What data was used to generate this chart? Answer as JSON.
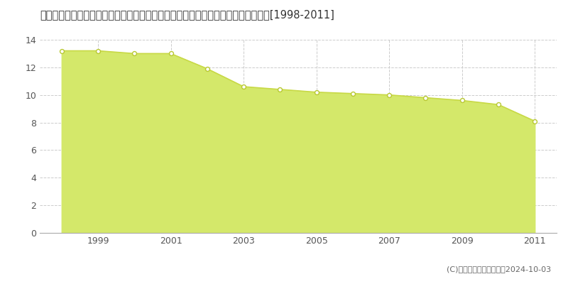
{
  "title": "広島県広島市安佐北区安佐町大字飯室字森城６８７９番２３　基準地価　地価推移[1998-2011]",
  "years": [
    1998,
    1999,
    2000,
    2001,
    2002,
    2003,
    2004,
    2005,
    2006,
    2007,
    2008,
    2009,
    2010,
    2011
  ],
  "values": [
    13.2,
    13.2,
    13.0,
    13.0,
    11.9,
    10.6,
    10.4,
    10.2,
    10.1,
    10.0,
    9.8,
    9.6,
    9.3,
    8.1
  ],
  "line_color": "#c8d946",
  "fill_color": "#d4e86a",
  "marker_facecolor": "#ffffff",
  "marker_edgecolor": "#b8c830",
  "bg_color": "#ffffff",
  "plot_bg_color": "#f5f5f5",
  "grid_color": "#cccccc",
  "axis_label_color": "#555555",
  "xlim_left": 1997.4,
  "xlim_right": 2011.6,
  "ylim_bottom": 0,
  "ylim_top": 14,
  "yticks": [
    0,
    2,
    4,
    6,
    8,
    10,
    12,
    14
  ],
  "xticks": [
    1999,
    2001,
    2003,
    2005,
    2007,
    2009,
    2011
  ],
  "copyright_text": "(C)土地価格ドットコム　2024-10-03",
  "title_fontsize": 10.5,
  "tick_fontsize": 9,
  "legend_fontsize": 9,
  "copyright_fontsize": 8
}
